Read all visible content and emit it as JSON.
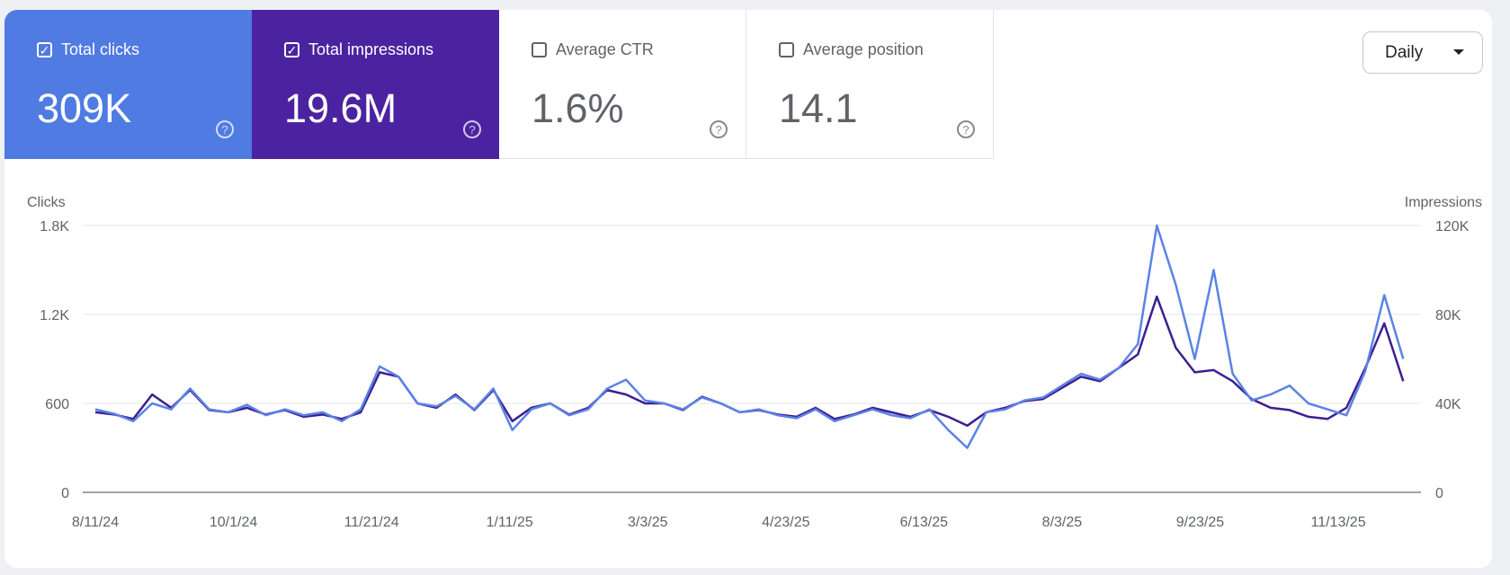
{
  "metrics": [
    {
      "label": "Total clicks",
      "value": "309K",
      "checked": true,
      "color": "#4f7be3"
    },
    {
      "label": "Total impressions",
      "value": "19.6M",
      "checked": true,
      "color": "#4b23a0"
    },
    {
      "label": "Average CTR",
      "value": "1.6%",
      "checked": false
    },
    {
      "label": "Average position",
      "value": "14.1",
      "checked": false
    }
  ],
  "help_icon": "question-circle-icon",
  "period_select": {
    "value": "Daily",
    "icon": "caret-down-icon"
  },
  "chart_data": {
    "type": "line",
    "left_axis": {
      "label": "Clicks",
      "ticks": [
        "0",
        "600",
        "1.2K",
        "1.8K"
      ],
      "range": [
        0,
        1800
      ]
    },
    "right_axis": {
      "label": "Impressions",
      "ticks": [
        "0",
        "40K",
        "80K",
        "120K"
      ],
      "range": [
        0,
        120000
      ]
    },
    "x_ticks": [
      "8/11/24",
      "10/1/24",
      "11/21/24",
      "1/11/25",
      "3/3/25",
      "4/23/25",
      "6/13/25",
      "8/3/25",
      "9/23/25",
      "11/13/25"
    ],
    "grid": true,
    "x": [
      "8/11/24",
      "8/18/24",
      "8/25/24",
      "9/1/24",
      "9/8/24",
      "9/15/24",
      "9/22/24",
      "9/29/24",
      "10/6/24",
      "10/13/24",
      "10/20/24",
      "10/27/24",
      "11/3/24",
      "11/10/24",
      "11/17/24",
      "11/24/24",
      "12/1/24",
      "12/8/24",
      "12/15/24",
      "12/22/24",
      "12/29/24",
      "1/5/25",
      "1/12/25",
      "1/19/25",
      "1/26/25",
      "2/2/25",
      "2/9/25",
      "2/16/25",
      "2/23/25",
      "3/2/25",
      "3/9/25",
      "3/16/25",
      "3/23/25",
      "3/30/25",
      "4/6/25",
      "4/13/25",
      "4/20/25",
      "4/27/25",
      "5/4/25",
      "5/11/25",
      "5/18/25",
      "5/25/25",
      "6/1/25",
      "6/8/25",
      "6/15/25",
      "6/22/25",
      "6/29/25",
      "7/6/25",
      "7/13/25",
      "7/20/25",
      "7/27/25",
      "8/3/25",
      "8/10/25",
      "8/17/25",
      "8/24/25",
      "8/31/25",
      "9/7/25",
      "9/14/25",
      "9/21/25",
      "9/28/25",
      "10/5/25",
      "10/12/25",
      "10/19/25",
      "10/26/25",
      "11/2/25",
      "11/9/25",
      "11/16/25",
      "11/23/25",
      "11/30/25",
      "12/7/25"
    ],
    "series": [
      {
        "name": "Clicks",
        "axis": "left",
        "color": "#5b83e6",
        "values": [
          560,
          530,
          480,
          600,
          560,
          700,
          560,
          540,
          590,
          520,
          560,
          520,
          540,
          480,
          560,
          850,
          780,
          600,
          580,
          650,
          560,
          700,
          420,
          560,
          600,
          520,
          560,
          700,
          760,
          620,
          600,
          560,
          640,
          600,
          540,
          560,
          520,
          500,
          560,
          480,
          520,
          560,
          520,
          500,
          560,
          420,
          300,
          540,
          560,
          620,
          640,
          720,
          800,
          760,
          840,
          1000,
          1800,
          1400,
          900,
          1500,
          800,
          620,
          660,
          720,
          600,
          560,
          520,
          820,
          1330,
          900
        ]
      },
      {
        "name": "Impressions",
        "axis": "right",
        "color": "#3d1f91",
        "values": [
          36000,
          35000,
          33000,
          44000,
          38000,
          46000,
          37000,
          36000,
          38000,
          35000,
          37000,
          34000,
          35000,
          33000,
          36000,
          54000,
          52000,
          40000,
          38000,
          44000,
          37000,
          46000,
          32000,
          38000,
          40000,
          35000,
          38000,
          46000,
          44000,
          40000,
          40000,
          37000,
          43000,
          40000,
          36000,
          37000,
          35000,
          34000,
          38000,
          33000,
          35000,
          38000,
          36000,
          34000,
          37000,
          34000,
          30000,
          36000,
          38000,
          41000,
          42000,
          47000,
          52000,
          50000,
          56000,
          62000,
          88000,
          65000,
          54000,
          55000,
          50000,
          42000,
          38000,
          37000,
          34000,
          33000,
          38000,
          56000,
          76000,
          50000
        ]
      }
    ]
  }
}
